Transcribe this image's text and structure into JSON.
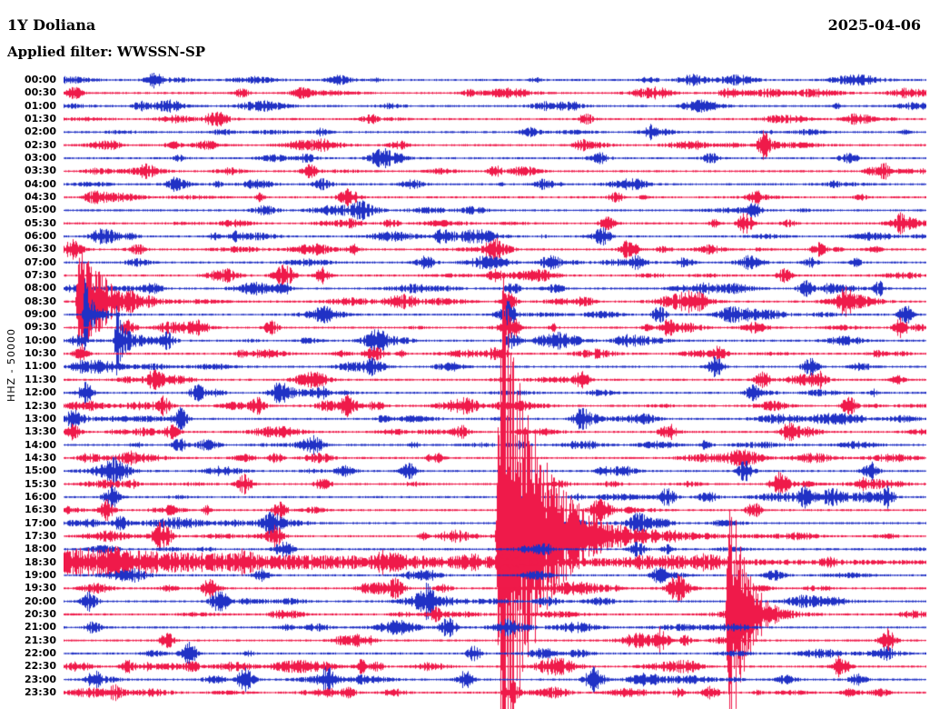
{
  "header": {
    "station": "1Y Doliana",
    "date": "2025-04-06",
    "filter": "Applied filter: WWSSN-SP"
  },
  "chart_data": {
    "type": "line",
    "variant": "helicorder-seismogram",
    "title": "1Y Doliana",
    "date": "2025-04-06",
    "filter": "WWSSN-SP",
    "ylabel": "HHZ - 50000",
    "minutes_per_row": 30,
    "row_labels": [
      "00:00",
      "00:30",
      "01:00",
      "01:30",
      "02:00",
      "02:30",
      "03:00",
      "03:30",
      "04:00",
      "04:30",
      "05:00",
      "05:30",
      "06:00",
      "06:30",
      "07:00",
      "07:30",
      "08:00",
      "08:30",
      "09:00",
      "09:30",
      "10:00",
      "10:30",
      "11:00",
      "11:30",
      "12:00",
      "12:30",
      "13:00",
      "13:30",
      "14:00",
      "14:30",
      "15:00",
      "15:30",
      "16:00",
      "16:30",
      "17:00",
      "17:30",
      "18:00",
      "18:30",
      "19:00",
      "19:30",
      "20:00",
      "20:30",
      "21:00",
      "21:30",
      "22:00",
      "22:30",
      "23:00",
      "23:30"
    ],
    "trace_colors": [
      "#2031c5",
      "#ef1a4a"
    ],
    "color_rule": "even rows blue, odd rows red",
    "noise_base": 0.85,
    "blobs": [
      [
        0,
        0.105,
        6,
        10
      ],
      [
        1,
        0.012,
        5,
        8
      ],
      [
        1,
        0.275,
        3,
        10
      ],
      [
        3,
        0.18,
        3,
        8
      ],
      [
        3,
        0.605,
        4,
        8
      ],
      [
        4,
        0.3,
        3,
        8
      ],
      [
        4,
        0.54,
        4,
        10
      ],
      [
        5,
        0.6,
        4,
        8
      ],
      [
        5,
        0.81,
        9,
        5
      ],
      [
        6,
        0.368,
        7,
        12
      ],
      [
        6,
        0.75,
        4,
        8
      ],
      [
        7,
        0.285,
        5,
        8
      ],
      [
        7,
        0.5,
        4,
        8
      ],
      [
        7,
        0.95,
        5,
        6
      ],
      [
        8,
        0.13,
        3,
        8
      ],
      [
        8,
        0.3,
        4,
        10
      ],
      [
        9,
        0.04,
        4,
        8
      ],
      [
        9,
        0.33,
        4,
        10
      ],
      [
        9,
        0.64,
        4,
        8
      ],
      [
        10,
        0.345,
        5,
        10
      ],
      [
        10,
        0.8,
        6,
        6
      ],
      [
        11,
        0.63,
        5,
        8
      ],
      [
        11,
        0.79,
        8,
        8
      ],
      [
        11,
        0.97,
        5,
        6
      ],
      [
        12,
        0.2,
        4,
        8
      ],
      [
        12,
        0.44,
        6,
        10
      ],
      [
        12,
        0.625,
        7,
        8
      ],
      [
        13,
        0.01,
        8,
        10
      ],
      [
        13,
        0.5,
        6,
        10
      ],
      [
        13,
        0.655,
        8,
        9
      ],
      [
        13,
        0.875,
        5,
        8
      ],
      [
        14,
        0.42,
        5,
        10
      ],
      [
        14,
        0.56,
        5,
        8
      ],
      [
        14,
        0.72,
        4,
        8
      ],
      [
        15,
        0.255,
        9,
        10
      ],
      [
        15,
        0.3,
        6,
        8
      ],
      [
        15,
        0.5,
        5,
        8
      ],
      [
        15,
        0.835,
        5,
        8
      ],
      [
        16,
        0.255,
        5,
        8
      ],
      [
        16,
        0.52,
        5,
        8
      ],
      [
        16,
        0.86,
        6,
        8
      ],
      [
        16,
        0.945,
        6,
        6
      ],
      [
        17,
        0.4,
        5,
        8
      ],
      [
        17,
        0.515,
        8,
        8
      ],
      [
        17,
        0.73,
        6,
        8
      ],
      [
        17,
        0.906,
        7,
        7
      ],
      [
        18,
        0.3,
        4,
        8
      ],
      [
        18,
        0.515,
        9,
        8
      ],
      [
        18,
        0.69,
        6,
        8
      ],
      [
        18,
        0.975,
        8,
        7
      ],
      [
        19,
        0.075,
        6,
        8
      ],
      [
        19,
        0.24,
        5,
        8
      ],
      [
        19,
        0.52,
        8,
        8
      ],
      [
        19,
        0.7,
        5,
        8
      ],
      [
        19,
        0.97,
        9,
        7
      ],
      [
        20,
        0.12,
        6,
        8
      ],
      [
        20,
        0.36,
        8,
        10
      ],
      [
        20,
        0.52,
        6,
        8
      ],
      [
        21,
        0.02,
        5,
        8
      ],
      [
        21,
        0.36,
        6,
        10
      ],
      [
        21,
        0.5,
        5,
        8
      ],
      [
        21,
        0.76,
        6,
        8
      ],
      [
        22,
        0.36,
        7,
        10
      ],
      [
        22,
        0.755,
        8,
        8
      ],
      [
        22,
        0.865,
        7,
        8
      ],
      [
        23,
        0.105,
        8,
        8
      ],
      [
        23,
        0.6,
        6,
        8
      ],
      [
        23,
        0.81,
        6,
        8
      ],
      [
        23,
        0.875,
        5,
        8
      ],
      [
        24,
        0.025,
        8,
        8
      ],
      [
        24,
        0.155,
        7,
        8
      ],
      [
        24,
        0.25,
        8,
        10
      ],
      [
        24,
        0.8,
        8,
        8
      ],
      [
        25,
        0.115,
        7,
        8
      ],
      [
        25,
        0.225,
        6,
        8
      ],
      [
        25,
        0.33,
        6,
        8
      ],
      [
        25,
        0.91,
        8,
        8
      ],
      [
        26,
        0.01,
        5,
        8
      ],
      [
        26,
        0.135,
        9,
        8
      ],
      [
        26,
        0.6,
        6,
        8
      ],
      [
        27,
        0.01,
        6,
        8
      ],
      [
        27,
        0.125,
        5,
        8
      ],
      [
        27,
        0.46,
        5,
        8
      ],
      [
        27,
        0.84,
        7,
        8
      ],
      [
        28,
        0.135,
        4,
        8
      ],
      [
        28,
        0.29,
        6,
        10
      ],
      [
        29,
        0.245,
        4,
        8
      ],
      [
        29,
        0.43,
        5,
        8
      ],
      [
        30,
        0.4,
        6,
        8
      ],
      [
        30,
        0.79,
        9,
        8
      ],
      [
        30,
        0.935,
        7,
        8
      ],
      [
        31,
        0.21,
        8,
        8
      ],
      [
        31,
        0.3,
        5,
        8
      ],
      [
        31,
        0.83,
        9,
        10
      ],
      [
        32,
        0.055,
        9,
        8
      ],
      [
        32,
        0.7,
        7,
        8
      ],
      [
        32,
        0.86,
        8,
        8
      ],
      [
        32,
        0.955,
        8,
        7
      ],
      [
        33,
        0.05,
        8,
        8
      ],
      [
        33,
        0.25,
        6,
        8
      ],
      [
        33,
        0.62,
        9,
        9
      ],
      [
        33,
        0.8,
        7,
        8
      ],
      [
        34,
        0.065,
        6,
        8
      ],
      [
        34,
        0.245,
        5,
        8
      ],
      [
        34,
        0.665,
        7,
        8
      ],
      [
        35,
        0.115,
        6,
        8
      ],
      [
        35,
        0.245,
        7,
        8
      ],
      [
        36,
        0.255,
        6,
        10
      ],
      [
        36,
        0.665,
        6,
        8
      ],
      [
        37,
        0.06,
        5,
        8
      ],
      [
        37,
        0.21,
        5,
        8
      ],
      [
        38,
        0.23,
        5,
        8
      ],
      [
        38,
        0.69,
        6,
        8
      ],
      [
        39,
        0.17,
        8,
        9
      ],
      [
        39,
        0.385,
        9,
        9
      ],
      [
        39,
        0.71,
        5,
        8
      ],
      [
        40,
        0.03,
        8,
        8
      ],
      [
        40,
        0.18,
        9,
        9
      ],
      [
        40,
        0.42,
        6,
        8
      ],
      [
        41,
        0.43,
        5,
        8
      ],
      [
        42,
        0.035,
        5,
        8
      ],
      [
        42,
        0.445,
        8,
        9
      ],
      [
        43,
        0.12,
        6,
        8
      ],
      [
        43,
        0.69,
        9,
        9
      ],
      [
        43,
        0.955,
        9,
        8
      ],
      [
        44,
        0.145,
        9,
        9
      ],
      [
        44,
        0.475,
        6,
        8
      ],
      [
        45,
        0.075,
        5,
        8
      ],
      [
        45,
        0.345,
        5,
        8
      ],
      [
        45,
        0.9,
        9,
        9
      ],
      [
        46,
        0.035,
        6,
        8
      ],
      [
        46,
        0.21,
        9,
        9
      ],
      [
        46,
        0.305,
        8,
        8
      ],
      [
        46,
        0.465,
        8,
        8
      ],
      [
        46,
        0.615,
        10,
        10
      ],
      [
        46,
        0.92,
        6,
        8
      ],
      [
        47,
        0.06,
        5,
        8
      ],
      [
        47,
        0.33,
        4,
        8
      ],
      [
        47,
        0.52,
        8,
        8
      ],
      [
        47,
        0.75,
        4,
        8
      ]
    ],
    "events": [
      [
        17,
        0.018,
        45,
        5,
        28
      ],
      [
        18,
        0.024,
        30,
        3,
        10
      ],
      [
        20,
        0.061,
        28,
        3,
        8
      ],
      [
        35,
        0.508,
        215,
        8,
        40
      ],
      [
        37,
        0.0,
        10,
        1,
        400
      ],
      [
        41,
        0.772,
        105,
        5,
        18
      ]
    ]
  }
}
